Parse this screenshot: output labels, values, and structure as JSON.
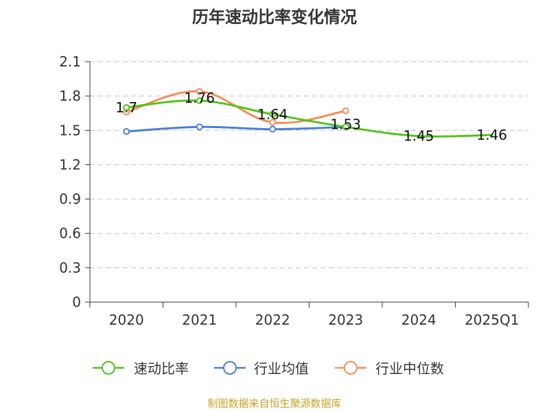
{
  "chart_data": {
    "type": "line",
    "title": "历年速动比率变化情况",
    "categories": [
      "2020",
      "2021",
      "2022",
      "2023",
      "2024",
      "2025Q1"
    ],
    "yticks": [
      "0",
      "0.3",
      "0.6",
      "0.9",
      "1.2",
      "1.5",
      "1.8",
      "2.1"
    ],
    "ylim": [
      0,
      2.1
    ],
    "grid": true,
    "legend_position": "bottom",
    "series": [
      {
        "name": "速动比率",
        "color": "#52c41a",
        "values": [
          1.7,
          1.76,
          1.64,
          1.53,
          1.45,
          1.46
        ],
        "labels": [
          "1.7",
          "1.76",
          "1.64",
          "1.53",
          "1.45",
          "1.46"
        ]
      },
      {
        "name": "行业均值",
        "color": "#4a7fd8",
        "values": [
          1.49,
          1.53,
          1.51,
          1.53,
          null,
          null
        ]
      },
      {
        "name": "行业中位数",
        "color": "#f58d5c",
        "values": [
          1.66,
          1.84,
          1.57,
          1.67,
          null,
          null
        ]
      }
    ]
  },
  "source_text": "制图数据来自恒生聚源数据库"
}
